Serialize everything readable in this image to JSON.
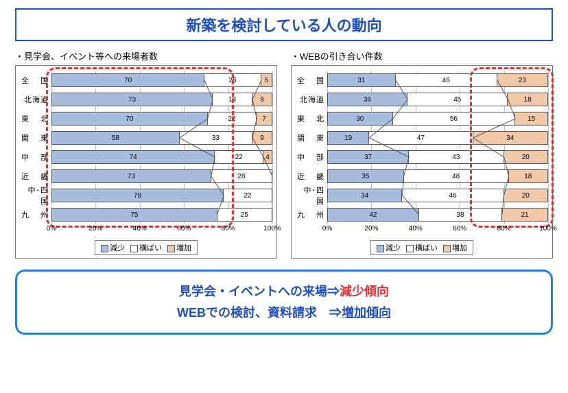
{
  "title": "新築を検討している人の動向",
  "colors": {
    "decrease": "#a8bce0",
    "same": "#ffffff",
    "increase": "#f2c9a8",
    "border": "#555555",
    "grid": "#bfbfbf",
    "title_blue": "#1f4fbf",
    "highlight_red": "#e63030",
    "summary_border": "#1f7fe6"
  },
  "legend": {
    "items": [
      {
        "label": "減少",
        "color": "#a8bce0"
      },
      {
        "label": "横ばい",
        "color": "#ffffff"
      },
      {
        "label": "増加",
        "color": "#f2c9a8"
      }
    ]
  },
  "axis": {
    "ticks": [
      0,
      20,
      40,
      60,
      80,
      100
    ],
    "suffix": "%"
  },
  "chart_left": {
    "subtitle": "・見学会、イベント等への来場者数",
    "regions": [
      "全　 国",
      "北海道",
      "東　 北",
      "関　 東",
      "中　 部",
      "近　 畿",
      "中･四国",
      "九　 州"
    ],
    "data": [
      {
        "decrease": 70,
        "same": 26,
        "increase": 5,
        "labels": [
          "70",
          "26",
          "5"
        ]
      },
      {
        "decrease": 73,
        "same": 18,
        "increase": 9,
        "labels": [
          "73",
          "18",
          "9"
        ]
      },
      {
        "decrease": 70,
        "same": 22,
        "increase": 7,
        "labels": [
          "70",
          "22",
          "7"
        ]
      },
      {
        "decrease": 58,
        "same": 33,
        "increase": 9,
        "labels": [
          "58",
          "33",
          "9"
        ]
      },
      {
        "decrease": 74,
        "same": 22,
        "increase": 4,
        "labels": [
          "74",
          "22",
          "4"
        ]
      },
      {
        "decrease": 73,
        "same": 28,
        "increase": 0,
        "labels": [
          "73",
          "28",
          ""
        ]
      },
      {
        "decrease": 78,
        "same": 22,
        "increase": 0,
        "labels": [
          "78",
          "22",
          ""
        ]
      },
      {
        "decrease": 75,
        "same": 25,
        "increase": 0,
        "labels": [
          "75",
          "25",
          ""
        ]
      }
    ],
    "highlight": {
      "left_pct": 0,
      "right_pct": 80,
      "desc": "decrease-region"
    }
  },
  "chart_right": {
    "subtitle": "・WEBの引き合い件数",
    "regions": [
      "全　 国",
      "北海道",
      "東　 北",
      "関　 東",
      "中　 部",
      "近　 畿",
      "中･四国",
      "九　 州"
    ],
    "data": [
      {
        "decrease": 31,
        "same": 46,
        "increase": 23,
        "labels": [
          "31",
          "46",
          "23"
        ]
      },
      {
        "decrease": 36,
        "same": 45,
        "increase": 18,
        "labels": [
          "36",
          "45",
          "18"
        ]
      },
      {
        "decrease": 30,
        "same": 56,
        "increase": 15,
        "labels": [
          "30",
          "56",
          "15"
        ]
      },
      {
        "decrease": 19,
        "same": 47,
        "increase": 34,
        "labels": [
          "19",
          "47",
          "34"
        ]
      },
      {
        "decrease": 37,
        "same": 43,
        "increase": 20,
        "labels": [
          "37",
          "43",
          "20"
        ]
      },
      {
        "decrease": 35,
        "same": 48,
        "increase": 18,
        "labels": [
          "35",
          "48",
          "18"
        ]
      },
      {
        "decrease": 34,
        "same": 46,
        "increase": 20,
        "labels": [
          "34",
          "46",
          "20"
        ]
      },
      {
        "decrease": 42,
        "same": 38,
        "increase": 21,
        "labels": [
          "42",
          "38",
          "21"
        ]
      }
    ],
    "highlight": {
      "left_pct": 67,
      "right_pct": 100,
      "desc": "increase-region"
    }
  },
  "summary": {
    "line1_pre": "見学会・イベントへの来場⇒",
    "line1_em": "減少傾向",
    "line2_pre": "WEBでの検討、資料請求　⇒",
    "line2_em": "増加傾向"
  }
}
